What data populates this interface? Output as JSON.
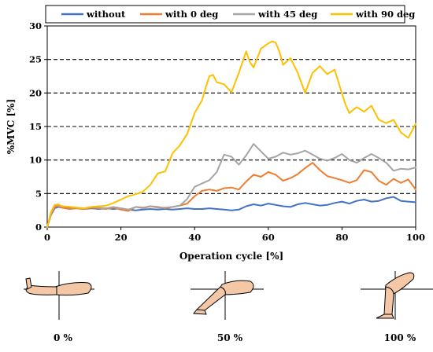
{
  "chart_data": {
    "type": "line",
    "title": "",
    "xlabel": "Operation cycle [%]",
    "ylabel": "%MVC [%]",
    "xlim": [
      0,
      100
    ],
    "ylim": [
      0,
      30
    ],
    "x_ticks": [
      0,
      20,
      40,
      60,
      80,
      100
    ],
    "y_ticks": [
      0,
      5,
      10,
      15,
      20,
      25,
      30
    ],
    "grid": "horizontal dashed at 5, 10, 15, 20, 25",
    "legend_position": "top",
    "series": [
      {
        "name": "without",
        "color": "#4472C4",
        "x": [
          0,
          1,
          2,
          3,
          4,
          6,
          8,
          10,
          12,
          14,
          16,
          18,
          20,
          22,
          24,
          26,
          28,
          30,
          32,
          34,
          36,
          38,
          40,
          42,
          44,
          46,
          48,
          50,
          52,
          54,
          56,
          58,
          60,
          62,
          64,
          66,
          68,
          70,
          72,
          74,
          76,
          78,
          80,
          82,
          84,
          86,
          88,
          90,
          92,
          94,
          96,
          98,
          100
        ],
        "y": [
          0,
          1.8,
          2.8,
          3.0,
          2.9,
          2.8,
          2.8,
          2.7,
          2.8,
          2.7,
          2.8,
          2.7,
          2.8,
          2.6,
          2.5,
          2.6,
          2.7,
          2.6,
          2.7,
          2.6,
          2.7,
          2.8,
          2.7,
          2.7,
          2.8,
          2.7,
          2.6,
          2.5,
          2.6,
          3.1,
          3.4,
          3.2,
          3.5,
          3.3,
          3.1,
          3.0,
          3.4,
          3.6,
          3.4,
          3.2,
          3.3,
          3.6,
          3.8,
          3.5,
          3.9,
          4.1,
          3.8,
          3.9,
          4.3,
          4.5,
          3.9,
          3.8,
          3.7
        ]
      },
      {
        "name": "with 0 deg",
        "color": "#ED7D31",
        "x": [
          0,
          1,
          2,
          3,
          4,
          6,
          8,
          10,
          12,
          14,
          16,
          18,
          20,
          22,
          24,
          26,
          28,
          30,
          32,
          34,
          36,
          38,
          40,
          42,
          44,
          46,
          48,
          50,
          52,
          54,
          56,
          58,
          60,
          62,
          64,
          66,
          68,
          70,
          72,
          74,
          76,
          78,
          80,
          82,
          84,
          86,
          88,
          90,
          92,
          94,
          96,
          98,
          100
        ],
        "y": [
          0,
          1.9,
          3.0,
          3.1,
          2.9,
          2.7,
          2.8,
          2.7,
          2.9,
          2.8,
          2.7,
          2.9,
          2.6,
          2.4,
          3.0,
          2.9,
          3.1,
          3.0,
          2.8,
          3.0,
          3.2,
          3.5,
          4.6,
          5.4,
          5.6,
          5.4,
          5.8,
          5.9,
          5.6,
          6.8,
          7.8,
          7.5,
          8.2,
          7.8,
          6.9,
          7.3,
          7.9,
          8.8,
          9.6,
          8.5,
          7.6,
          7.3,
          7.0,
          6.6,
          7.0,
          8.5,
          8.2,
          6.9,
          6.3,
          7.2,
          6.6,
          7.1,
          5.6
        ]
      },
      {
        "name": "with 45 deg",
        "color": "#A5A5A5",
        "x": [
          0,
          1,
          2,
          3,
          4,
          6,
          8,
          10,
          12,
          14,
          16,
          18,
          20,
          22,
          24,
          26,
          28,
          30,
          32,
          34,
          36,
          38,
          40,
          42,
          44,
          46,
          48,
          50,
          52,
          54,
          56,
          58,
          60,
          62,
          64,
          66,
          68,
          70,
          72,
          74,
          76,
          78,
          80,
          82,
          84,
          86,
          88,
          90,
          92,
          94,
          96,
          98,
          100
        ],
        "y": [
          0,
          2.1,
          3.3,
          3.2,
          3.1,
          3.0,
          2.9,
          2.8,
          3.0,
          2.9,
          2.8,
          3.0,
          2.8,
          2.6,
          3.0,
          2.8,
          3.1,
          2.9,
          2.9,
          3.0,
          3.2,
          4.2,
          6.0,
          6.5,
          7.0,
          8.2,
          10.8,
          10.5,
          9.3,
          10.7,
          12.4,
          11.3,
          10.2,
          10.5,
          11.1,
          10.8,
          11.0,
          11.4,
          10.8,
          10.2,
          9.9,
          10.3,
          10.9,
          10.0,
          9.6,
          10.3,
          10.9,
          10.3,
          9.6,
          8.4,
          8.7,
          8.6,
          8.9
        ]
      },
      {
        "name": "with 90 deg",
        "color": "#FFC000",
        "x": [
          0,
          1,
          2,
          3,
          4,
          6,
          8,
          10,
          12,
          14,
          16,
          18,
          20,
          22,
          24,
          26,
          28,
          30,
          32,
          34,
          36,
          38,
          40,
          42,
          43,
          44,
          45,
          46,
          48,
          50,
          52,
          54,
          55,
          56,
          58,
          60,
          61,
          62,
          63,
          64,
          66,
          68,
          70,
          72,
          74,
          76,
          78,
          80,
          81,
          82,
          84,
          86,
          88,
          90,
          92,
          94,
          96,
          98,
          100
        ],
        "y": [
          0,
          2.2,
          3.3,
          3.4,
          3.1,
          3.0,
          2.9,
          2.8,
          3.0,
          3.1,
          3.2,
          3.6,
          4.1,
          4.6,
          4.9,
          5.3,
          6.3,
          8.0,
          8.3,
          11.0,
          12.2,
          13.9,
          17.0,
          18.9,
          20.8,
          22.5,
          22.7,
          21.6,
          21.3,
          20.1,
          23.0,
          26.2,
          24.6,
          23.8,
          26.6,
          27.4,
          27.7,
          27.5,
          26.2,
          24.2,
          25.2,
          23.0,
          20.0,
          23.0,
          24.0,
          22.8,
          23.5,
          19.9,
          18.2,
          17.0,
          17.9,
          17.2,
          18.1,
          16.0,
          15.5,
          16.0,
          14.1,
          13.3,
          15.4
        ]
      }
    ]
  },
  "poses": [
    {
      "label": "0 %"
    },
    {
      "label": "50 %"
    },
    {
      "label": "100 %"
    }
  ]
}
